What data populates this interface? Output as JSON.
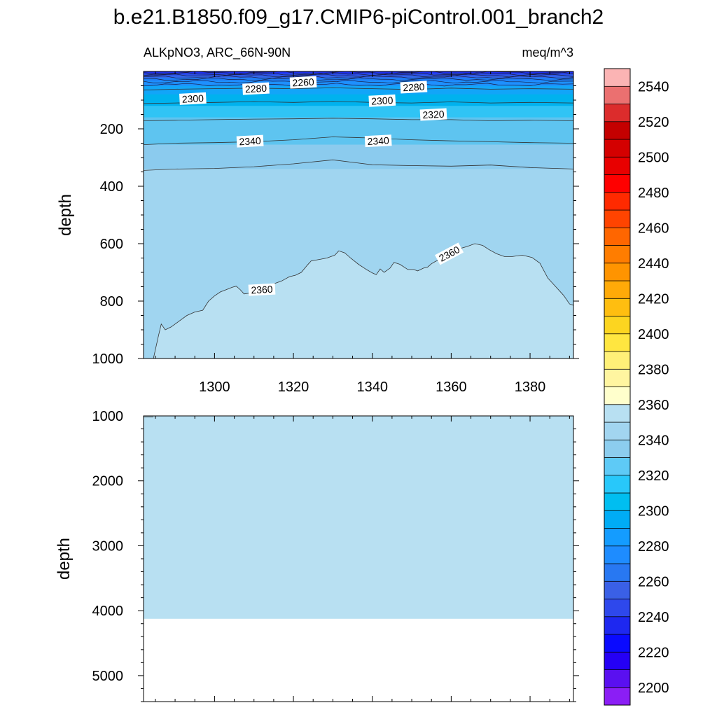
{
  "title": "b.e21.B1850.f09_g17.CMIP6-piControl.001_branch2",
  "subtitle_left": "ALKpNO3, ARC_66N-90N",
  "subtitle_right": "meq/m^3",
  "chart_data": [
    {
      "type": "heatmap",
      "panel": "upper",
      "ylabel": "depth",
      "xlim": [
        1282,
        1391
      ],
      "ylim": [
        0,
        1000
      ],
      "y_inverted": true,
      "xticks": [
        1300,
        1320,
        1340,
        1360,
        1380
      ],
      "yticks": [
        200,
        400,
        600,
        800,
        1000
      ],
      "fill_bands": [
        {
          "top": 0,
          "bottom": 7,
          "color": "#1e2ef0"
        },
        {
          "top": 7,
          "bottom": 14,
          "color": "#2b4fe8"
        },
        {
          "top": 14,
          "bottom": 22,
          "color": "#3366e8"
        },
        {
          "top": 22,
          "bottom": 32,
          "color": "#1e7cf5"
        },
        {
          "top": 32,
          "bottom": 50,
          "color": "#1e90ff"
        },
        {
          "top": 50,
          "bottom": 80,
          "color": "#12a5f8"
        },
        {
          "top": 80,
          "bottom": 120,
          "color": "#00b2ee"
        },
        {
          "top": 120,
          "bottom": 160,
          "color": "#30c4f5"
        },
        {
          "top": 160,
          "bottom": 255,
          "color": "#5ec4f0"
        },
        {
          "top": 255,
          "bottom": 340,
          "color": "#8bcbee"
        },
        {
          "top": 340,
          "bottom": 1000,
          "color": "#a0d5f0"
        }
      ],
      "contour_2300_upper": [
        [
          1282,
          65
        ],
        [
          1290,
          62
        ],
        [
          1300,
          60
        ],
        [
          1310,
          58
        ],
        [
          1320,
          60
        ],
        [
          1330,
          57
        ],
        [
          1340,
          60
        ],
        [
          1350,
          63
        ],
        [
          1360,
          58
        ],
        [
          1370,
          62
        ],
        [
          1380,
          60
        ],
        [
          1391,
          62
        ]
      ],
      "contour_2300": [
        [
          1282,
          112
        ],
        [
          1290,
          110
        ],
        [
          1300,
          108
        ],
        [
          1310,
          105
        ],
        [
          1320,
          108
        ],
        [
          1330,
          104
        ],
        [
          1340,
          108
        ],
        [
          1350,
          110
        ],
        [
          1360,
          106
        ],
        [
          1370,
          110
        ],
        [
          1380,
          108
        ],
        [
          1391,
          110
        ]
      ],
      "contour_2320": [
        [
          1282,
          172
        ],
        [
          1290,
          170
        ],
        [
          1300,
          168
        ],
        [
          1310,
          166
        ],
        [
          1320,
          165
        ],
        [
          1330,
          163
        ],
        [
          1340,
          165
        ],
        [
          1350,
          168
        ],
        [
          1360,
          168
        ],
        [
          1370,
          172
        ],
        [
          1380,
          170
        ],
        [
          1391,
          172
        ]
      ],
      "contour_2340": [
        [
          1282,
          255
        ],
        [
          1290,
          250
        ],
        [
          1300,
          248
        ],
        [
          1310,
          245
        ],
        [
          1320,
          238
        ],
        [
          1330,
          228
        ],
        [
          1340,
          232
        ],
        [
          1350,
          238
        ],
        [
          1360,
          242
        ],
        [
          1370,
          245
        ],
        [
          1380,
          248
        ],
        [
          1391,
          250
        ]
      ],
      "contour_2350": [
        [
          1282,
          345
        ],
        [
          1290,
          340
        ],
        [
          1300,
          338
        ],
        [
          1310,
          332
        ],
        [
          1320,
          322
        ],
        [
          1330,
          308
        ],
        [
          1340,
          325
        ],
        [
          1350,
          328
        ],
        [
          1360,
          330
        ],
        [
          1370,
          326
        ],
        [
          1380,
          335
        ],
        [
          1391,
          340
        ]
      ],
      "contour_2360": [
        [
          1284.5,
          1000
        ],
        [
          1285.8,
          920
        ],
        [
          1286.5,
          880
        ],
        [
          1287.5,
          900
        ],
        [
          1289,
          890
        ],
        [
          1291,
          870
        ],
        [
          1293,
          850
        ],
        [
          1295,
          838
        ],
        [
          1297,
          832
        ],
        [
          1298.5,
          800
        ],
        [
          1300,
          782
        ],
        [
          1301.5,
          768
        ],
        [
          1303,
          760
        ],
        [
          1304.5,
          752
        ],
        [
          1305.5,
          748
        ],
        [
          1306.5,
          760
        ],
        [
          1307.5,
          775
        ],
        [
          1309,
          772
        ],
        [
          1311,
          760
        ],
        [
          1313,
          748
        ],
        [
          1315,
          740
        ],
        [
          1317,
          730
        ],
        [
          1319,
          715
        ],
        [
          1320.5,
          710
        ],
        [
          1322,
          700
        ],
        [
          1323.5,
          675
        ],
        [
          1324.5,
          660
        ],
        [
          1326.5,
          655
        ],
        [
          1328.5,
          650
        ],
        [
          1330.5,
          640
        ],
        [
          1331.5,
          625
        ],
        [
          1333,
          632
        ],
        [
          1334.5,
          650
        ],
        [
          1336.5,
          672
        ],
        [
          1338.5,
          690
        ],
        [
          1340,
          702
        ],
        [
          1341,
          708
        ],
        [
          1342,
          688
        ],
        [
          1343,
          700
        ],
        [
          1344.5,
          685
        ],
        [
          1345.5,
          665
        ],
        [
          1347,
          672
        ],
        [
          1349,
          690
        ],
        [
          1350.5,
          690
        ],
        [
          1351.5,
          695
        ],
        [
          1353,
          685
        ],
        [
          1354,
          682
        ],
        [
          1355,
          670
        ],
        [
          1356,
          662
        ],
        [
          1358,
          650
        ],
        [
          1360,
          635
        ],
        [
          1362,
          618
        ],
        [
          1364,
          610
        ],
        [
          1366,
          600
        ],
        [
          1368,
          606
        ],
        [
          1369.5,
          620
        ],
        [
          1371.5,
          635
        ],
        [
          1373.5,
          645
        ],
        [
          1375.5,
          645
        ],
        [
          1378,
          640
        ],
        [
          1380.5,
          648
        ],
        [
          1382.5,
          668
        ],
        [
          1384.5,
          720
        ],
        [
          1386.5,
          750
        ],
        [
          1388.5,
          780
        ],
        [
          1390,
          810
        ],
        [
          1391,
          815
        ],
        [
          1391,
          1000
        ]
      ],
      "contour_labels": [
        {
          "value": "2260",
          "x": 1322.5,
          "y": 38
        },
        {
          "value": "2280",
          "x": 1310.5,
          "y": 60
        },
        {
          "value": "2280",
          "x": 1350.5,
          "y": 55
        },
        {
          "value": "2300",
          "x": 1294.5,
          "y": 95
        },
        {
          "value": "2300",
          "x": 1342.5,
          "y": 102
        },
        {
          "value": "2320",
          "x": 1355.5,
          "y": 150
        },
        {
          "value": "2340",
          "x": 1309,
          "y": 243
        },
        {
          "value": "2340",
          "x": 1341.5,
          "y": 242
        },
        {
          "value": "2360",
          "x": 1312,
          "y": 760
        },
        {
          "value": "2360",
          "x": 1359.5,
          "y": 635
        }
      ]
    },
    {
      "type": "heatmap",
      "panel": "lower",
      "ylabel": "depth",
      "xlim": [
        1282,
        1391
      ],
      "ylim": [
        1000,
        5400
      ],
      "y_inverted": true,
      "xticks": [
        1300,
        1320,
        1340,
        1360,
        1380
      ],
      "yticks": [
        1000,
        2000,
        3000,
        4000,
        5000
      ],
      "fill_bottom_depth": 4125,
      "fill_color": "#b8e0f2"
    }
  ],
  "colorbar": {
    "tick_labels": [
      "2200",
      "2220",
      "2240",
      "2260",
      "2280",
      "2300",
      "2320",
      "2340",
      "2360",
      "2380",
      "2400",
      "2420",
      "2440",
      "2460",
      "2480",
      "2500",
      "2520",
      "2540"
    ],
    "colors": [
      "#8b1ef5",
      "#5a10f0",
      "#2500f5",
      "#0a0aff",
      "#1e28f0",
      "#2e48ec",
      "#3a60e6",
      "#2878f2",
      "#1e8cff",
      "#149cff",
      "#00acf5",
      "#00bef0",
      "#28c8fa",
      "#5ecaf6",
      "#8ccdee",
      "#a2d5f0",
      "#b8e0f2",
      "#ffffcc",
      "#fff5a0",
      "#fff078",
      "#ffe640",
      "#fcd520",
      "#ffbe10",
      "#ffaa08",
      "#ff9400",
      "#ff7d00",
      "#ff6600",
      "#ff4400",
      "#ff2a00",
      "#ff0000",
      "#e80000",
      "#d40000",
      "#c40000",
      "#dc2c2c",
      "#eb7070",
      "#fbb4b4"
    ]
  }
}
